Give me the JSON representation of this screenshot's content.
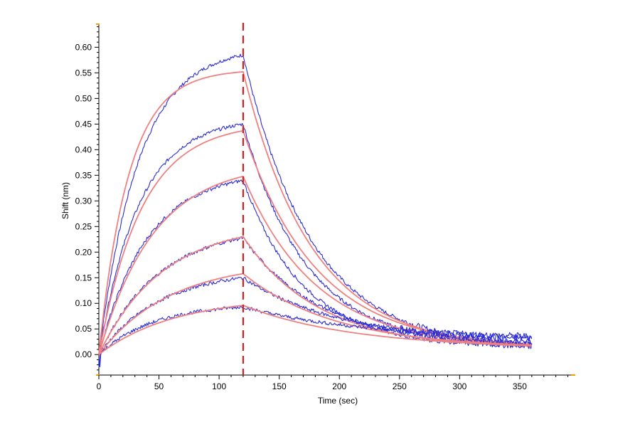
{
  "chart_data": {
    "type": "line",
    "title": "",
    "xlabel": "Time (sec)",
    "ylabel": "Shift (nm)",
    "xlim": [
      0,
      395
    ],
    "ylim": [
      -0.04,
      0.645
    ],
    "x_ticks": [
      0,
      50,
      100,
      150,
      200,
      250,
      300,
      350
    ],
    "y_ticks": [
      0.0,
      0.05,
      0.1,
      0.15,
      0.2,
      0.25,
      0.3,
      0.35,
      0.4,
      0.45,
      0.5,
      0.55,
      0.6
    ],
    "grid": false,
    "legend": "none",
    "association_end_marker_x": 120,
    "x_end": 360,
    "colors": {
      "measured": "#2b2bd6",
      "fitted": "#f08080",
      "marker": "#d62020",
      "axis": "#000000",
      "axis_end_tick": "#f5a000"
    },
    "series": [
      {
        "kind": "measured",
        "plateau_at_120": 0.585,
        "assoc_rate": 0.03,
        "dissoc_rate": 0.0175,
        "end_value_360": 0.01
      },
      {
        "kind": "fitted",
        "plateau_at_120": 0.552,
        "assoc_rate": 0.04,
        "dissoc_rate": 0.0175,
        "end_value_360": 0.01
      },
      {
        "kind": "measured",
        "plateau_at_120": 0.45,
        "assoc_rate": 0.03,
        "dissoc_rate": 0.019,
        "end_value_360": 0.015
      },
      {
        "kind": "fitted",
        "plateau_at_120": 0.437,
        "assoc_rate": 0.028,
        "dissoc_rate": 0.0165,
        "end_value_360": 0.012
      },
      {
        "kind": "measured",
        "plateau_at_120": 0.34,
        "assoc_rate": 0.025,
        "dissoc_rate": 0.02,
        "end_value_360": 0.015
      },
      {
        "kind": "fitted",
        "plateau_at_120": 0.348,
        "assoc_rate": 0.022,
        "dissoc_rate": 0.0165,
        "end_value_360": 0.012
      },
      {
        "kind": "measured",
        "plateau_at_120": 0.228,
        "assoc_rate": 0.02,
        "dissoc_rate": 0.016,
        "end_value_360": 0.02
      },
      {
        "kind": "fitted",
        "plateau_at_120": 0.23,
        "assoc_rate": 0.019,
        "dissoc_rate": 0.016,
        "end_value_360": 0.012
      },
      {
        "kind": "measured",
        "plateau_at_120": 0.15,
        "assoc_rate": 0.02,
        "dissoc_rate": 0.0125,
        "end_value_360": 0.025
      },
      {
        "kind": "fitted",
        "plateau_at_120": 0.158,
        "assoc_rate": 0.017,
        "dissoc_rate": 0.013,
        "end_value_360": 0.012
      },
      {
        "kind": "measured",
        "plateau_at_120": 0.093,
        "assoc_rate": 0.022,
        "dissoc_rate": 0.01,
        "end_value_360": 0.03
      },
      {
        "kind": "fitted",
        "plateau_at_120": 0.096,
        "assoc_rate": 0.016,
        "dissoc_rate": 0.011,
        "end_value_360": 0.012
      }
    ]
  }
}
